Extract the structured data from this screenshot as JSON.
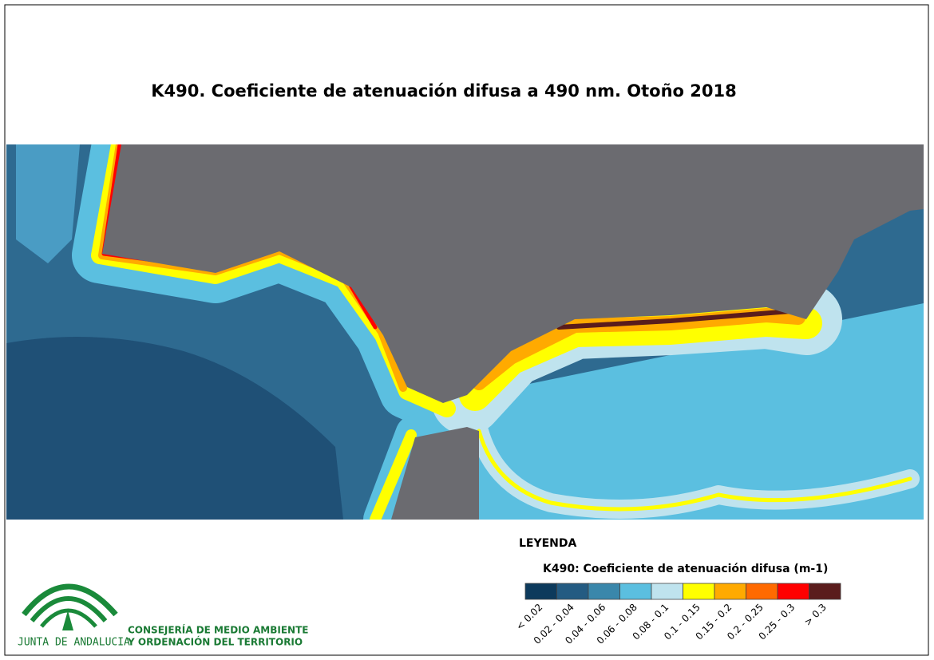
{
  "title": "K490. Coeficiente de atenuación difusa a 490 nm. Otoño 2018",
  "legend": {
    "heading": "LEYENDA",
    "title": "K490: Coeficiente de atenuación difusa (m-1)",
    "classes": [
      {
        "label": "< 0.02",
        "color": "#0d3a5c"
      },
      {
        "label": "0.02 - 0.04",
        "color": "#245b82"
      },
      {
        "label": "0.04 - 0.06",
        "color": "#3a87ab"
      },
      {
        "label": "0.06 - 0.08",
        "color": "#5bbfe0"
      },
      {
        "label": "0.08 - 0.1",
        "color": "#bfe3ee"
      },
      {
        "label": "0.1 - 0.15",
        "color": "#ffff00"
      },
      {
        "label": "0.15 - 0.2",
        "color": "#ffaa00"
      },
      {
        "label": "0.2 - 0.25",
        "color": "#ff6a00"
      },
      {
        "label": "0.25 - 0.3",
        "color": "#ff0000"
      },
      {
        "label": "> 0.3",
        "color": "#5a1c1c"
      }
    ]
  },
  "logo": {
    "name": "JUNTA DE ANDALUCIA",
    "line1": "CONSEJERÍA DE MEDIO AMBIENTE",
    "line2": "Y ORDENACIÓN DEL TERRITORIO"
  }
}
